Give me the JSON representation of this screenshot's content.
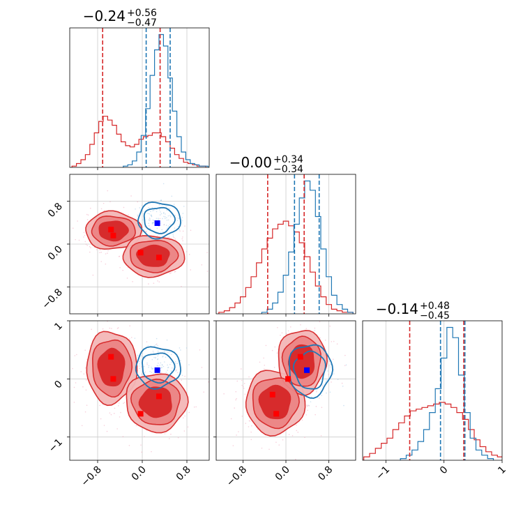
{
  "chart_data": {
    "type": "corner",
    "colors": {
      "red": "#d62728",
      "blue": "#1f77b4",
      "red_fill": "#f09999",
      "red_fill_dark": "#d62728",
      "grid": "#cccccc",
      "blue_marker": "#0000ff",
      "red_marker": "#ff0000",
      "quantile_blue": "#1f77b4",
      "quantile_red": "#d62728"
    },
    "parameters": [
      {
        "title_value": "−0.24",
        "title_plus": "+0.56",
        "title_minus": "−0.47",
        "range": [
          -1.3,
          1.2
        ],
        "ticks": [
          -0.8,
          0.0,
          0.8
        ],
        "tick_labels": [
          "−0.8",
          "0.0",
          "0.8"
        ],
        "red_quantiles": [
          -0.71,
          0.32
        ],
        "blue_quantiles": [
          0.07,
          0.5
        ]
      },
      {
        "title_value": "−0.00",
        "title_plus": "+0.34",
        "title_minus": "−0.34",
        "range": [
          -1.3,
          1.3
        ],
        "ticks": [
          -0.8,
          0.0,
          0.8
        ],
        "tick_labels": [
          "−0.8",
          "0.0",
          "0.8"
        ],
        "red_quantiles": [
          -0.34,
          0.34
        ],
        "blue_quantiles": [
          0.16,
          0.62
        ]
      },
      {
        "title_value": "−0.14",
        "title_plus": "+0.48",
        "title_minus": "−0.45",
        "range": [
          -1.4,
          1.0
        ],
        "ticks": [
          -1,
          0,
          1
        ],
        "tick_labels": [
          "−1",
          "0",
          "1"
        ],
        "red_quantiles": [
          -0.59,
          0.34
        ],
        "blue_quantiles": [
          -0.06,
          0.36
        ]
      }
    ],
    "hist_red": [
      {
        "centers": [
          -1.22,
          -1.14,
          -1.06,
          -0.98,
          -0.9,
          -0.82,
          -0.74,
          -0.66,
          -0.58,
          -0.5,
          -0.42,
          -0.34,
          -0.26,
          -0.18,
          -0.1,
          -0.02,
          0.06,
          0.14,
          0.22,
          0.3,
          0.38,
          0.46,
          0.54,
          0.62,
          0.7,
          0.78,
          0.86,
          0.94,
          1.02,
          1.1
        ],
        "counts": [
          1,
          3,
          6,
          10,
          18,
          27,
          36,
          40,
          37,
          33,
          26,
          20,
          17,
          16,
          18,
          22,
          24,
          25,
          27,
          27,
          24,
          20,
          15,
          10,
          7,
          4,
          3,
          2,
          1,
          1
        ]
      },
      {
        "centers": [
          -1.2,
          -1.1,
          -1.0,
          -0.9,
          -0.8,
          -0.7,
          -0.6,
          -0.5,
          -0.4,
          -0.3,
          -0.2,
          -0.1,
          0.0,
          0.1,
          0.2,
          0.3,
          0.4,
          0.5,
          0.6,
          0.7,
          0.8,
          0.9,
          1.0,
          1.1,
          1.2
        ],
        "counts": [
          1,
          2,
          4,
          7,
          11,
          17,
          24,
          33,
          42,
          49,
          55,
          58,
          60,
          57,
          53,
          46,
          37,
          27,
          18,
          11,
          6,
          3,
          2,
          1,
          1
        ]
      },
      {
        "centers": [
          -1.33,
          -1.23,
          -1.13,
          -1.03,
          -0.93,
          -0.83,
          -0.73,
          -0.63,
          -0.53,
          -0.43,
          -0.33,
          -0.23,
          -0.13,
          -0.03,
          0.07,
          0.17,
          0.27,
          0.37,
          0.47,
          0.57,
          0.67,
          0.77,
          0.87,
          0.97
        ],
        "counts": [
          2,
          4,
          7,
          10,
          13,
          18,
          22,
          26,
          29,
          30,
          31,
          32,
          33,
          34,
          33,
          31,
          28,
          24,
          18,
          12,
          8,
          5,
          3,
          2
        ]
      }
    ],
    "hist_blue": [
      {
        "centers": [
          -0.3,
          -0.22,
          -0.14,
          -0.06,
          0.02,
          0.1,
          0.18,
          0.26,
          0.34,
          0.42,
          0.5,
          0.58,
          0.66,
          0.74,
          0.82,
          0.9,
          0.98,
          1.06,
          1.14
        ],
        "counts": [
          1,
          2,
          5,
          12,
          25,
          46,
          72,
          92,
          104,
          95,
          70,
          44,
          24,
          12,
          6,
          3,
          2,
          1,
          1
        ]
      },
      {
        "centers": [
          -0.4,
          -0.3,
          -0.2,
          -0.1,
          0.0,
          0.1,
          0.2,
          0.3,
          0.4,
          0.5,
          0.6,
          0.7,
          0.8,
          0.9,
          1.0,
          1.1,
          1.2
        ],
        "counts": [
          1,
          3,
          7,
          14,
          25,
          40,
          58,
          75,
          86,
          80,
          63,
          42,
          24,
          12,
          6,
          3,
          1
        ]
      },
      {
        "centers": [
          -0.7,
          -0.6,
          -0.5,
          -0.4,
          -0.3,
          -0.2,
          -0.1,
          0.0,
          0.1,
          0.2,
          0.3,
          0.4,
          0.5,
          0.6,
          0.7,
          0.8
        ],
        "counts": [
          1,
          3,
          6,
          11,
          18,
          28,
          42,
          60,
          78,
          72,
          50,
          28,
          13,
          6,
          3,
          1
        ]
      }
    ],
    "scatter_markers": [
      {
        "panel": [
          1,
          0
        ],
        "red": [
          [
            -0.56,
            0.27
          ],
          [
            -0.52,
            0.16
          ],
          [
            -0.03,
            -0.16
          ],
          [
            0.3,
            -0.25
          ]
        ],
        "blue": [
          [
            0.27,
            0.39
          ]
        ]
      },
      {
        "panel": [
          2,
          0
        ],
        "red": [
          [
            -0.56,
            0.38
          ],
          [
            -0.52,
            0.0
          ],
          [
            -0.03,
            -0.6
          ],
          [
            0.3,
            -0.3
          ]
        ],
        "blue": [
          [
            0.27,
            0.15
          ]
        ]
      },
      {
        "panel": [
          2,
          1
        ],
        "red": [
          [
            -0.25,
            -0.27
          ],
          [
            -0.18,
            -0.6
          ],
          [
            0.27,
            0.38
          ],
          [
            0.04,
            0.0
          ]
        ],
        "blue": [
          [
            0.39,
            0.15
          ]
        ]
      }
    ],
    "contours_red": [
      {
        "panel": [
          1,
          0
        ],
        "blobs": [
          {
            "cx": -0.52,
            "cy": 0.25,
            "rx": 0.5,
            "ry": 0.35
          },
          {
            "cx": 0.2,
            "cy": -0.22,
            "rx": 0.55,
            "ry": 0.38
          }
        ]
      },
      {
        "panel": [
          2,
          0
        ],
        "blobs": [
          {
            "cx": -0.55,
            "cy": 0.2,
            "rx": 0.45,
            "ry": 0.62
          },
          {
            "cx": 0.25,
            "cy": -0.4,
            "rx": 0.55,
            "ry": 0.5
          }
        ]
      },
      {
        "panel": [
          2,
          1
        ],
        "blobs": [
          {
            "cx": -0.2,
            "cy": -0.4,
            "rx": 0.55,
            "ry": 0.55
          },
          {
            "cx": 0.3,
            "cy": 0.3,
            "rx": 0.45,
            "ry": 0.55
          }
        ]
      }
    ],
    "contours_blue": [
      {
        "panel": [
          1,
          0
        ],
        "cx": 0.3,
        "cy": 0.45,
        "rx": 0.38,
        "ry": 0.33
      },
      {
        "panel": [
          2,
          0
        ],
        "cx": 0.28,
        "cy": 0.2,
        "rx": 0.4,
        "ry": 0.35
      },
      {
        "panel": [
          2,
          1
        ],
        "cx": 0.45,
        "cy": 0.15,
        "rx": 0.4,
        "ry": 0.45
      }
    ]
  }
}
